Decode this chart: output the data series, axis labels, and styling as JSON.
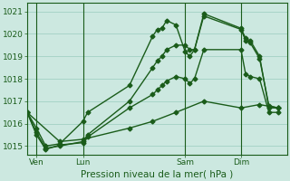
{
  "xlabel": "Pression niveau de la mer( hPa )",
  "ylim": [
    1014.6,
    1021.4
  ],
  "yticks": [
    1015,
    1016,
    1017,
    1018,
    1019,
    1020,
    1021
  ],
  "background_color": "#cce8e0",
  "grid_color": "#99ccbe",
  "line_color": "#1a5c1a",
  "xtick_labels": [
    "Ven",
    "Lun",
    "Sam",
    "Dim"
  ],
  "xtick_positions": [
    2,
    12,
    34,
    46
  ],
  "xlim": [
    0,
    56
  ],
  "vlines_x": [
    2,
    12,
    34,
    46
  ],
  "lines": [
    {
      "x": [
        0,
        2,
        4,
        7,
        12,
        13,
        22,
        27,
        28,
        29,
        30,
        32,
        34,
        35,
        36,
        38,
        46,
        47,
        48,
        50,
        52,
        54
      ],
      "y": [
        1016.5,
        1015.8,
        1015.0,
        1015.1,
        1016.1,
        1016.5,
        1017.7,
        1019.9,
        1020.2,
        1020.25,
        1020.6,
        1020.4,
        1019.2,
        1019.0,
        1019.3,
        1020.9,
        1020.25,
        1019.8,
        1019.7,
        1019.0,
        1016.7,
        1016.7
      ]
    },
    {
      "x": [
        0,
        2,
        4,
        7,
        12,
        13,
        22,
        27,
        28,
        29,
        30,
        32,
        34,
        35,
        36,
        38,
        46,
        47,
        48,
        50,
        52,
        54
      ],
      "y": [
        1016.5,
        1015.6,
        1014.9,
        1015.0,
        1015.2,
        1015.5,
        1017.0,
        1018.5,
        1018.8,
        1019.0,
        1019.3,
        1019.5,
        1019.5,
        1019.3,
        1019.3,
        1020.8,
        1020.2,
        1019.7,
        1019.6,
        1018.9,
        1016.8,
        1016.7
      ]
    },
    {
      "x": [
        0,
        2,
        4,
        7,
        12,
        13,
        22,
        27,
        28,
        29,
        30,
        32,
        34,
        35,
        36,
        38,
        46,
        47,
        48,
        50,
        52,
        54
      ],
      "y": [
        1016.5,
        1015.5,
        1014.85,
        1015.05,
        1015.15,
        1015.4,
        1016.7,
        1017.3,
        1017.5,
        1017.7,
        1017.9,
        1018.1,
        1018.0,
        1017.8,
        1018.0,
        1019.3,
        1019.3,
        1018.2,
        1018.1,
        1018.0,
        1016.5,
        1016.5
      ]
    },
    {
      "x": [
        0,
        7,
        12,
        22,
        27,
        32,
        38,
        46,
        50,
        54
      ],
      "y": [
        1016.5,
        1015.2,
        1015.3,
        1015.8,
        1016.1,
        1016.5,
        1017.0,
        1016.7,
        1016.85,
        1016.7
      ]
    }
  ],
  "marker": "D",
  "marker_size": 2.5,
  "line_width": 1.0,
  "font_size_ticks": 6.5,
  "font_size_xlabel": 7.5
}
